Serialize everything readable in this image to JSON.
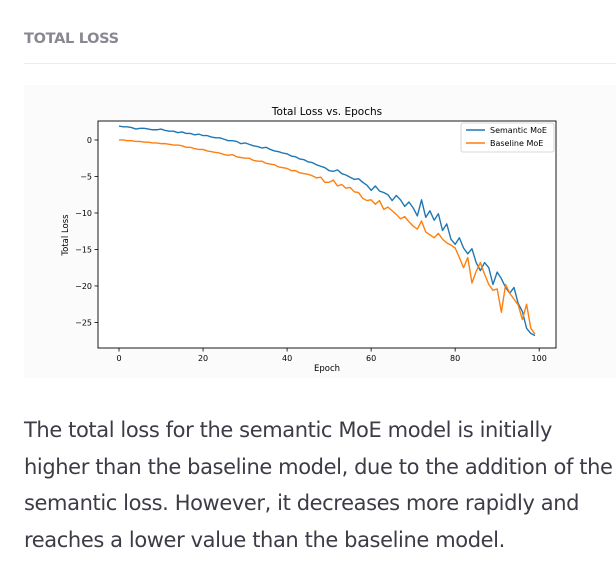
{
  "section": {
    "heading": "TOTAL LOSS"
  },
  "chart_data": {
    "type": "line",
    "title": "Total Loss vs. Epochs",
    "xlabel": "Epoch",
    "ylabel": "Total Loss",
    "xlim": [
      -5,
      104
    ],
    "ylim": [
      -28.5,
      2.6
    ],
    "xticks": [
      0,
      20,
      40,
      60,
      80,
      100
    ],
    "yticks": [
      0,
      -5,
      -10,
      -15,
      -20,
      -25
    ],
    "xtick_labels": [
      "0",
      "20",
      "40",
      "60",
      "80",
      "100"
    ],
    "ytick_labels": [
      "0",
      "−5",
      "−10",
      "−15",
      "−20",
      "−25"
    ],
    "grid": false,
    "legend_position": "top-right",
    "series": [
      {
        "name": "Semantic MoE",
        "color": "#1f77b4",
        "x": [
          0,
          1,
          2,
          3,
          4,
          5,
          6,
          7,
          8,
          9,
          10,
          11,
          12,
          13,
          14,
          15,
          16,
          17,
          18,
          19,
          20,
          21,
          22,
          23,
          24,
          25,
          26,
          27,
          28,
          29,
          30,
          31,
          32,
          33,
          34,
          35,
          36,
          37,
          38,
          39,
          40,
          41,
          42,
          43,
          44,
          45,
          46,
          47,
          48,
          49,
          50,
          51,
          52,
          53,
          54,
          55,
          56,
          57,
          58,
          59,
          60,
          61,
          62,
          63,
          64,
          65,
          66,
          67,
          68,
          69,
          70,
          71,
          72,
          73,
          74,
          75,
          76,
          77,
          78,
          79,
          80,
          81,
          82,
          83,
          84,
          85,
          86,
          87,
          88,
          89,
          90,
          91,
          92,
          93,
          94,
          95,
          96,
          97,
          98,
          99
        ],
        "y": [
          1.9,
          1.8,
          1.8,
          1.7,
          1.5,
          1.6,
          1.6,
          1.5,
          1.4,
          1.4,
          1.5,
          1.3,
          1.2,
          1.2,
          1.0,
          1.1,
          0.9,
          0.9,
          0.7,
          0.8,
          0.6,
          0.6,
          0.4,
          0.3,
          0.3,
          0.1,
          -0.1,
          -0.1,
          -0.2,
          -0.5,
          -0.4,
          -0.6,
          -0.8,
          -0.9,
          -1.1,
          -1.0,
          -1.3,
          -1.5,
          -1.6,
          -1.8,
          -1.9,
          -2.2,
          -2.3,
          -2.6,
          -2.7,
          -3.0,
          -3.1,
          -3.4,
          -3.6,
          -3.8,
          -4.2,
          -4.3,
          -4.1,
          -4.6,
          -4.8,
          -5.1,
          -5.4,
          -5.3,
          -5.8,
          -6.2,
          -6.9,
          -6.3,
          -7.0,
          -7.2,
          -7.5,
          -8.3,
          -7.6,
          -8.2,
          -9.1,
          -8.5,
          -9.3,
          -10.4,
          -8.2,
          -10.6,
          -9.7,
          -11.0,
          -10.1,
          -12.4,
          -11.5,
          -13.6,
          -14.3,
          -13.4,
          -14.8,
          -15.6,
          -14.9,
          -16.8,
          -17.9,
          -16.8,
          -17.5,
          -19.8,
          -18.1,
          -19.0,
          -20.2,
          -21.0,
          -20.2,
          -22.4,
          -23.5,
          -25.8,
          -26.5,
          -26.8
        ]
      },
      {
        "name": "Baseline MoE",
        "color": "#ff7f0e",
        "x": [
          0,
          1,
          2,
          3,
          4,
          5,
          6,
          7,
          8,
          9,
          10,
          11,
          12,
          13,
          14,
          15,
          16,
          17,
          18,
          19,
          20,
          21,
          22,
          23,
          24,
          25,
          26,
          27,
          28,
          29,
          30,
          31,
          32,
          33,
          34,
          35,
          36,
          37,
          38,
          39,
          40,
          41,
          42,
          43,
          44,
          45,
          46,
          47,
          48,
          49,
          50,
          51,
          52,
          53,
          54,
          55,
          56,
          57,
          58,
          59,
          60,
          61,
          62,
          63,
          64,
          65,
          66,
          67,
          68,
          69,
          70,
          71,
          72,
          73,
          74,
          75,
          76,
          77,
          78,
          79,
          80,
          81,
          82,
          83,
          84,
          85,
          86,
          87,
          88,
          89,
          90,
          91,
          92,
          93,
          94,
          95,
          96,
          97,
          98,
          99
        ],
        "y": [
          0.0,
          0.0,
          -0.1,
          -0.1,
          -0.2,
          -0.2,
          -0.3,
          -0.3,
          -0.4,
          -0.4,
          -0.5,
          -0.5,
          -0.6,
          -0.7,
          -0.7,
          -0.8,
          -1.0,
          -1.0,
          -1.2,
          -1.3,
          -1.3,
          -1.5,
          -1.6,
          -1.7,
          -1.8,
          -2.0,
          -2.1,
          -2.0,
          -2.3,
          -2.4,
          -2.5,
          -2.5,
          -2.8,
          -2.9,
          -2.9,
          -3.2,
          -3.3,
          -3.4,
          -3.7,
          -3.8,
          -3.9,
          -4.2,
          -4.2,
          -4.5,
          -4.6,
          -4.7,
          -4.9,
          -5.2,
          -5.1,
          -5.8,
          -5.8,
          -5.5,
          -6.3,
          -6.1,
          -6.6,
          -6.5,
          -7.1,
          -7.2,
          -8.0,
          -8.3,
          -8.2,
          -8.8,
          -8.3,
          -9.5,
          -9.2,
          -9.7,
          -10.2,
          -10.8,
          -10.5,
          -11.2,
          -11.8,
          -12.2,
          -11.1,
          -12.6,
          -13.0,
          -13.4,
          -12.8,
          -13.6,
          -14.1,
          -14.4,
          -14.8,
          -16.1,
          -17.5,
          -16.1,
          -19.6,
          -18.0,
          -16.8,
          -18.4,
          -19.8,
          -20.6,
          -20.4,
          -23.6,
          -19.8,
          -21.0,
          -21.8,
          -22.6,
          -24.6,
          -22.5,
          -25.8,
          -26.6
        ]
      }
    ]
  },
  "caption": {
    "text": "The total loss for the semantic MoE model is initially higher than the baseline model, due to the addition of the semantic loss. However, it decreases more rapidly and reaches a lower value than the baseline model."
  }
}
